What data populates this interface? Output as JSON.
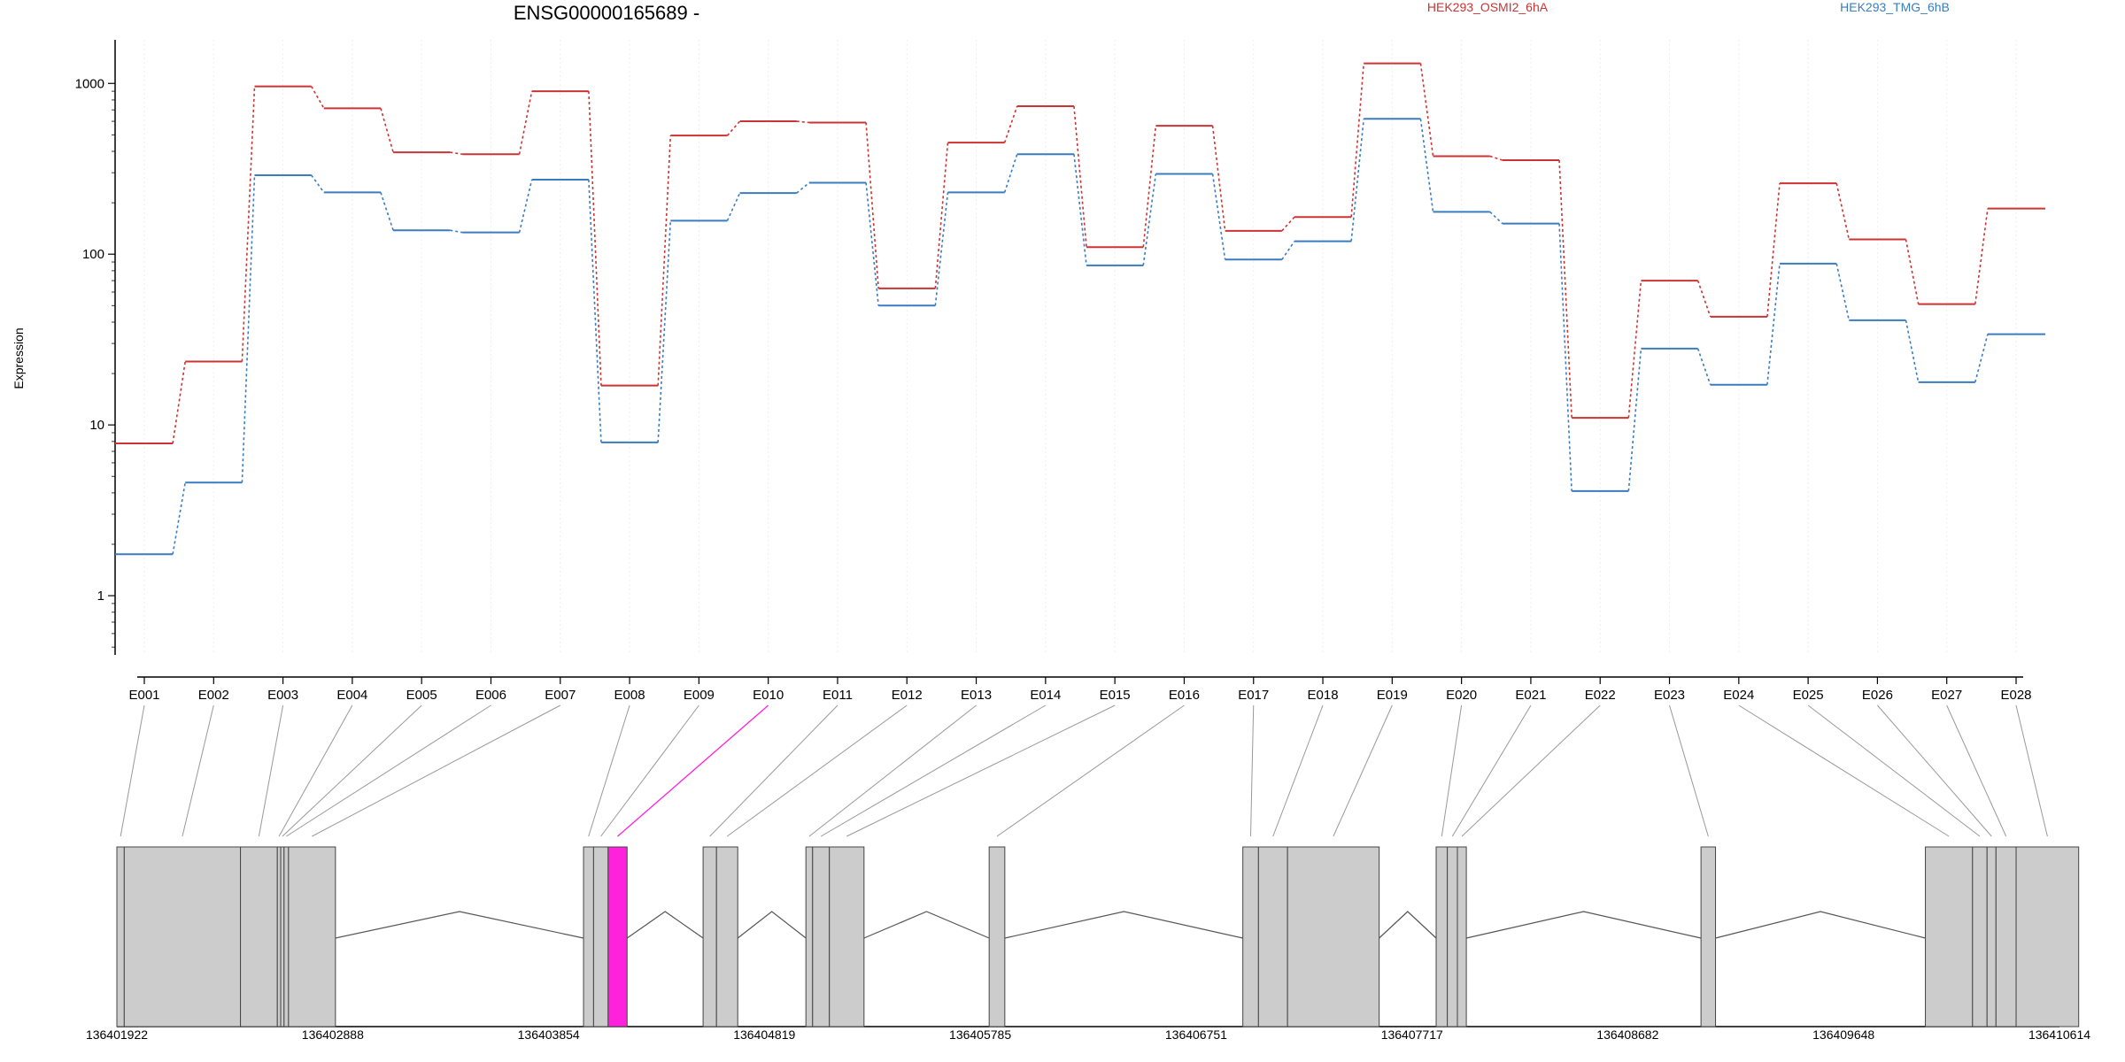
{
  "chart_data": {
    "type": "line",
    "title": "ENSG00000165689 -",
    "ylabel": "Expression",
    "xlabel": "",
    "yscale": "log",
    "ylim": [
      0.45,
      1800
    ],
    "yticks": [
      1,
      10,
      100,
      1000
    ],
    "ytick_labels": [
      "1",
      "10",
      "100",
      "1000"
    ],
    "grid": "vertical-light",
    "legend_placement": "top",
    "colors": {
      "osmi": "#cc3333",
      "tmg": "#3a7cc0",
      "highlight": "#ff22dd",
      "exon_fill": "#cccccc"
    },
    "categories": [
      "E001",
      "E002",
      "E003",
      "E004",
      "E005",
      "E006",
      "E007",
      "E008",
      "E009",
      "E010",
      "E011",
      "E012",
      "E013",
      "E014",
      "E015",
      "E016",
      "E017",
      "E018",
      "E019",
      "E020",
      "E021",
      "E022",
      "E023",
      "E024",
      "E025",
      "E026",
      "E027",
      "E028"
    ],
    "series": [
      {
        "name": "HEK293_OSMI2_6hA",
        "color": "#cc3333",
        "values": [
          7.8,
          23.5,
          960,
          715,
          395,
          385,
          900,
          17,
          495,
          600,
          590,
          63,
          450,
          735,
          110,
          565,
          137,
          165,
          1310,
          375,
          355,
          11,
          70,
          43,
          260,
          122,
          51,
          185
        ]
      },
      {
        "name": "HEK293_TMG_6hB",
        "color": "#3a7cc0",
        "values": [
          1.75,
          4.6,
          290,
          230,
          138,
          134,
          273,
          7.9,
          157,
          228,
          262,
          50,
          230,
          385,
          86,
          295,
          93,
          119,
          620,
          177,
          151,
          4.1,
          28,
          17.2,
          88,
          41,
          17.8,
          34
        ]
      }
    ],
    "gene_model": {
      "axis_ticks": [
        "136401922",
        "136402888",
        "136403854",
        "136404819",
        "136405785",
        "136406751",
        "136407717",
        "136408682",
        "136409648",
        "136410614"
      ],
      "genomic_range": [
        136401922,
        136410614
      ],
      "highlighted_exon": "E010",
      "exons": [
        {
          "id": "E001",
          "start": 136401922,
          "end": 136401955
        },
        {
          "id": "E002",
          "start": 136401955,
          "end": 136402475
        },
        {
          "id": "E003",
          "start": 136402475,
          "end": 136402640
        },
        {
          "id": "E004",
          "start": 136402640,
          "end": 136402655
        },
        {
          "id": "E005",
          "start": 136402655,
          "end": 136402670
        },
        {
          "id": "E006",
          "start": 136402670,
          "end": 136402690
        },
        {
          "id": "E007",
          "start": 136402690,
          "end": 136402900
        },
        {
          "id": "E008",
          "start": 136404010,
          "end": 136404055
        },
        {
          "id": "E009",
          "start": 136404055,
          "end": 136404120
        },
        {
          "id": "E010",
          "start": 136404120,
          "end": 136404205
        },
        {
          "id": "E011",
          "start": 136404545,
          "end": 136404605
        },
        {
          "id": "E012",
          "start": 136404605,
          "end": 136404700
        },
        {
          "id": "E013",
          "start": 136405005,
          "end": 136405035
        },
        {
          "id": "E014",
          "start": 136405035,
          "end": 136405110
        },
        {
          "id": "E015",
          "start": 136405110,
          "end": 136405265
        },
        {
          "id": "E016",
          "start": 136405825,
          "end": 136405895
        },
        {
          "id": "E017",
          "start": 136406960,
          "end": 136407030
        },
        {
          "id": "E018",
          "start": 136407030,
          "end": 136407160
        },
        {
          "id": "E019",
          "start": 136407160,
          "end": 136407570
        },
        {
          "id": "E020",
          "start": 136407825,
          "end": 136407875
        },
        {
          "id": "E021",
          "start": 136407875,
          "end": 136407920
        },
        {
          "id": "E022",
          "start": 136407920,
          "end": 136407960
        },
        {
          "id": "E023",
          "start": 136409010,
          "end": 136409075
        },
        {
          "id": "E024",
          "start": 136410014,
          "end": 136410225
        },
        {
          "id": "E025",
          "start": 136410225,
          "end": 136410290
        },
        {
          "id": "E026",
          "start": 136410290,
          "end": 136410330
        },
        {
          "id": "E027",
          "start": 136410330,
          "end": 136410420
        },
        {
          "id": "E028",
          "start": 136410420,
          "end": 136410700
        }
      ]
    }
  }
}
